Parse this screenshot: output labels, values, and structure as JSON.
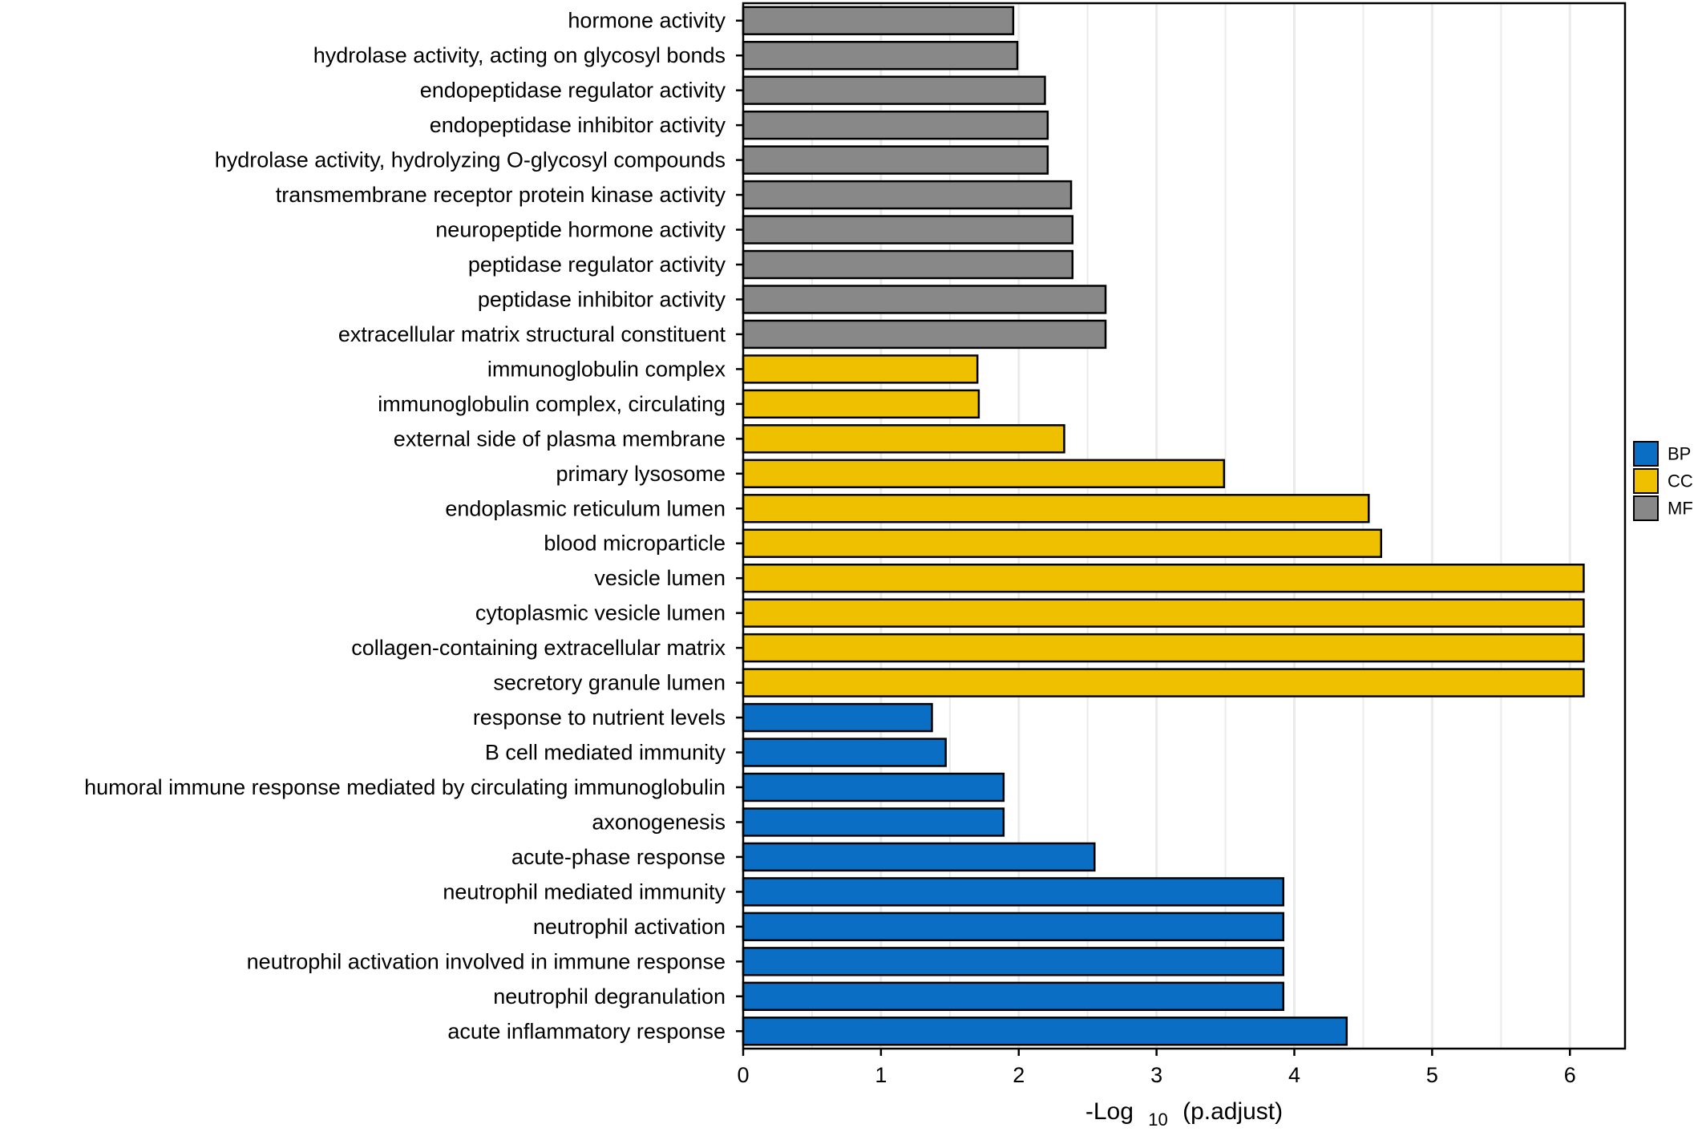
{
  "chart_data": {
    "type": "bar",
    "orientation": "horizontal",
    "title": "",
    "xlabel": {
      "prefix": "-Log",
      "subscript": "10",
      "suffix": "(p.adjust)"
    },
    "ylabel": "",
    "xlim": [
      0,
      6.4
    ],
    "xticks": [
      0,
      1,
      2,
      3,
      4,
      5,
      6
    ],
    "grid": true,
    "legend_position": "right",
    "colors": {
      "BP": "#0a6fc4",
      "CC": "#eec000",
      "MF": "#888888"
    },
    "legend": [
      "BP",
      "CC",
      "MF"
    ],
    "categories": [
      "hormone activity",
      "hydrolase activity, acting on glycosyl bonds",
      "endopeptidase regulator activity",
      "endopeptidase inhibitor activity",
      "hydrolase activity, hydrolyzing O-glycosyl compounds",
      "transmembrane receptor protein kinase activity",
      "neuropeptide hormone activity",
      "peptidase regulator activity",
      "peptidase inhibitor activity",
      "extracellular matrix structural constituent",
      "immunoglobulin complex",
      "immunoglobulin complex, circulating",
      "external side of plasma membrane",
      "primary lysosome",
      "endoplasmic reticulum lumen",
      "blood microparticle",
      "vesicle lumen",
      "cytoplasmic vesicle lumen",
      "collagen-containing extracellular matrix",
      "secretory granule lumen",
      "response to nutrient levels",
      "B cell mediated immunity",
      "humoral immune response mediated by circulating immunoglobulin",
      "axonogenesis",
      "acute-phase response",
      "neutrophil mediated immunity",
      "neutrophil activation",
      "neutrophil activation involved in immune response",
      "neutrophil degranulation",
      "acute inflammatory response"
    ],
    "values": [
      1.96,
      1.99,
      2.19,
      2.21,
      2.21,
      2.38,
      2.39,
      2.39,
      2.63,
      2.63,
      1.7,
      1.71,
      2.33,
      3.49,
      4.54,
      4.63,
      6.1,
      6.1,
      6.1,
      6.1,
      1.37,
      1.47,
      1.89,
      1.89,
      2.55,
      3.92,
      3.92,
      3.92,
      3.92,
      4.38
    ],
    "groups": [
      "MF",
      "MF",
      "MF",
      "MF",
      "MF",
      "MF",
      "MF",
      "MF",
      "MF",
      "MF",
      "CC",
      "CC",
      "CC",
      "CC",
      "CC",
      "CC",
      "CC",
      "CC",
      "CC",
      "CC",
      "BP",
      "BP",
      "BP",
      "BP",
      "BP",
      "BP",
      "BP",
      "BP",
      "BP",
      "BP"
    ]
  }
}
